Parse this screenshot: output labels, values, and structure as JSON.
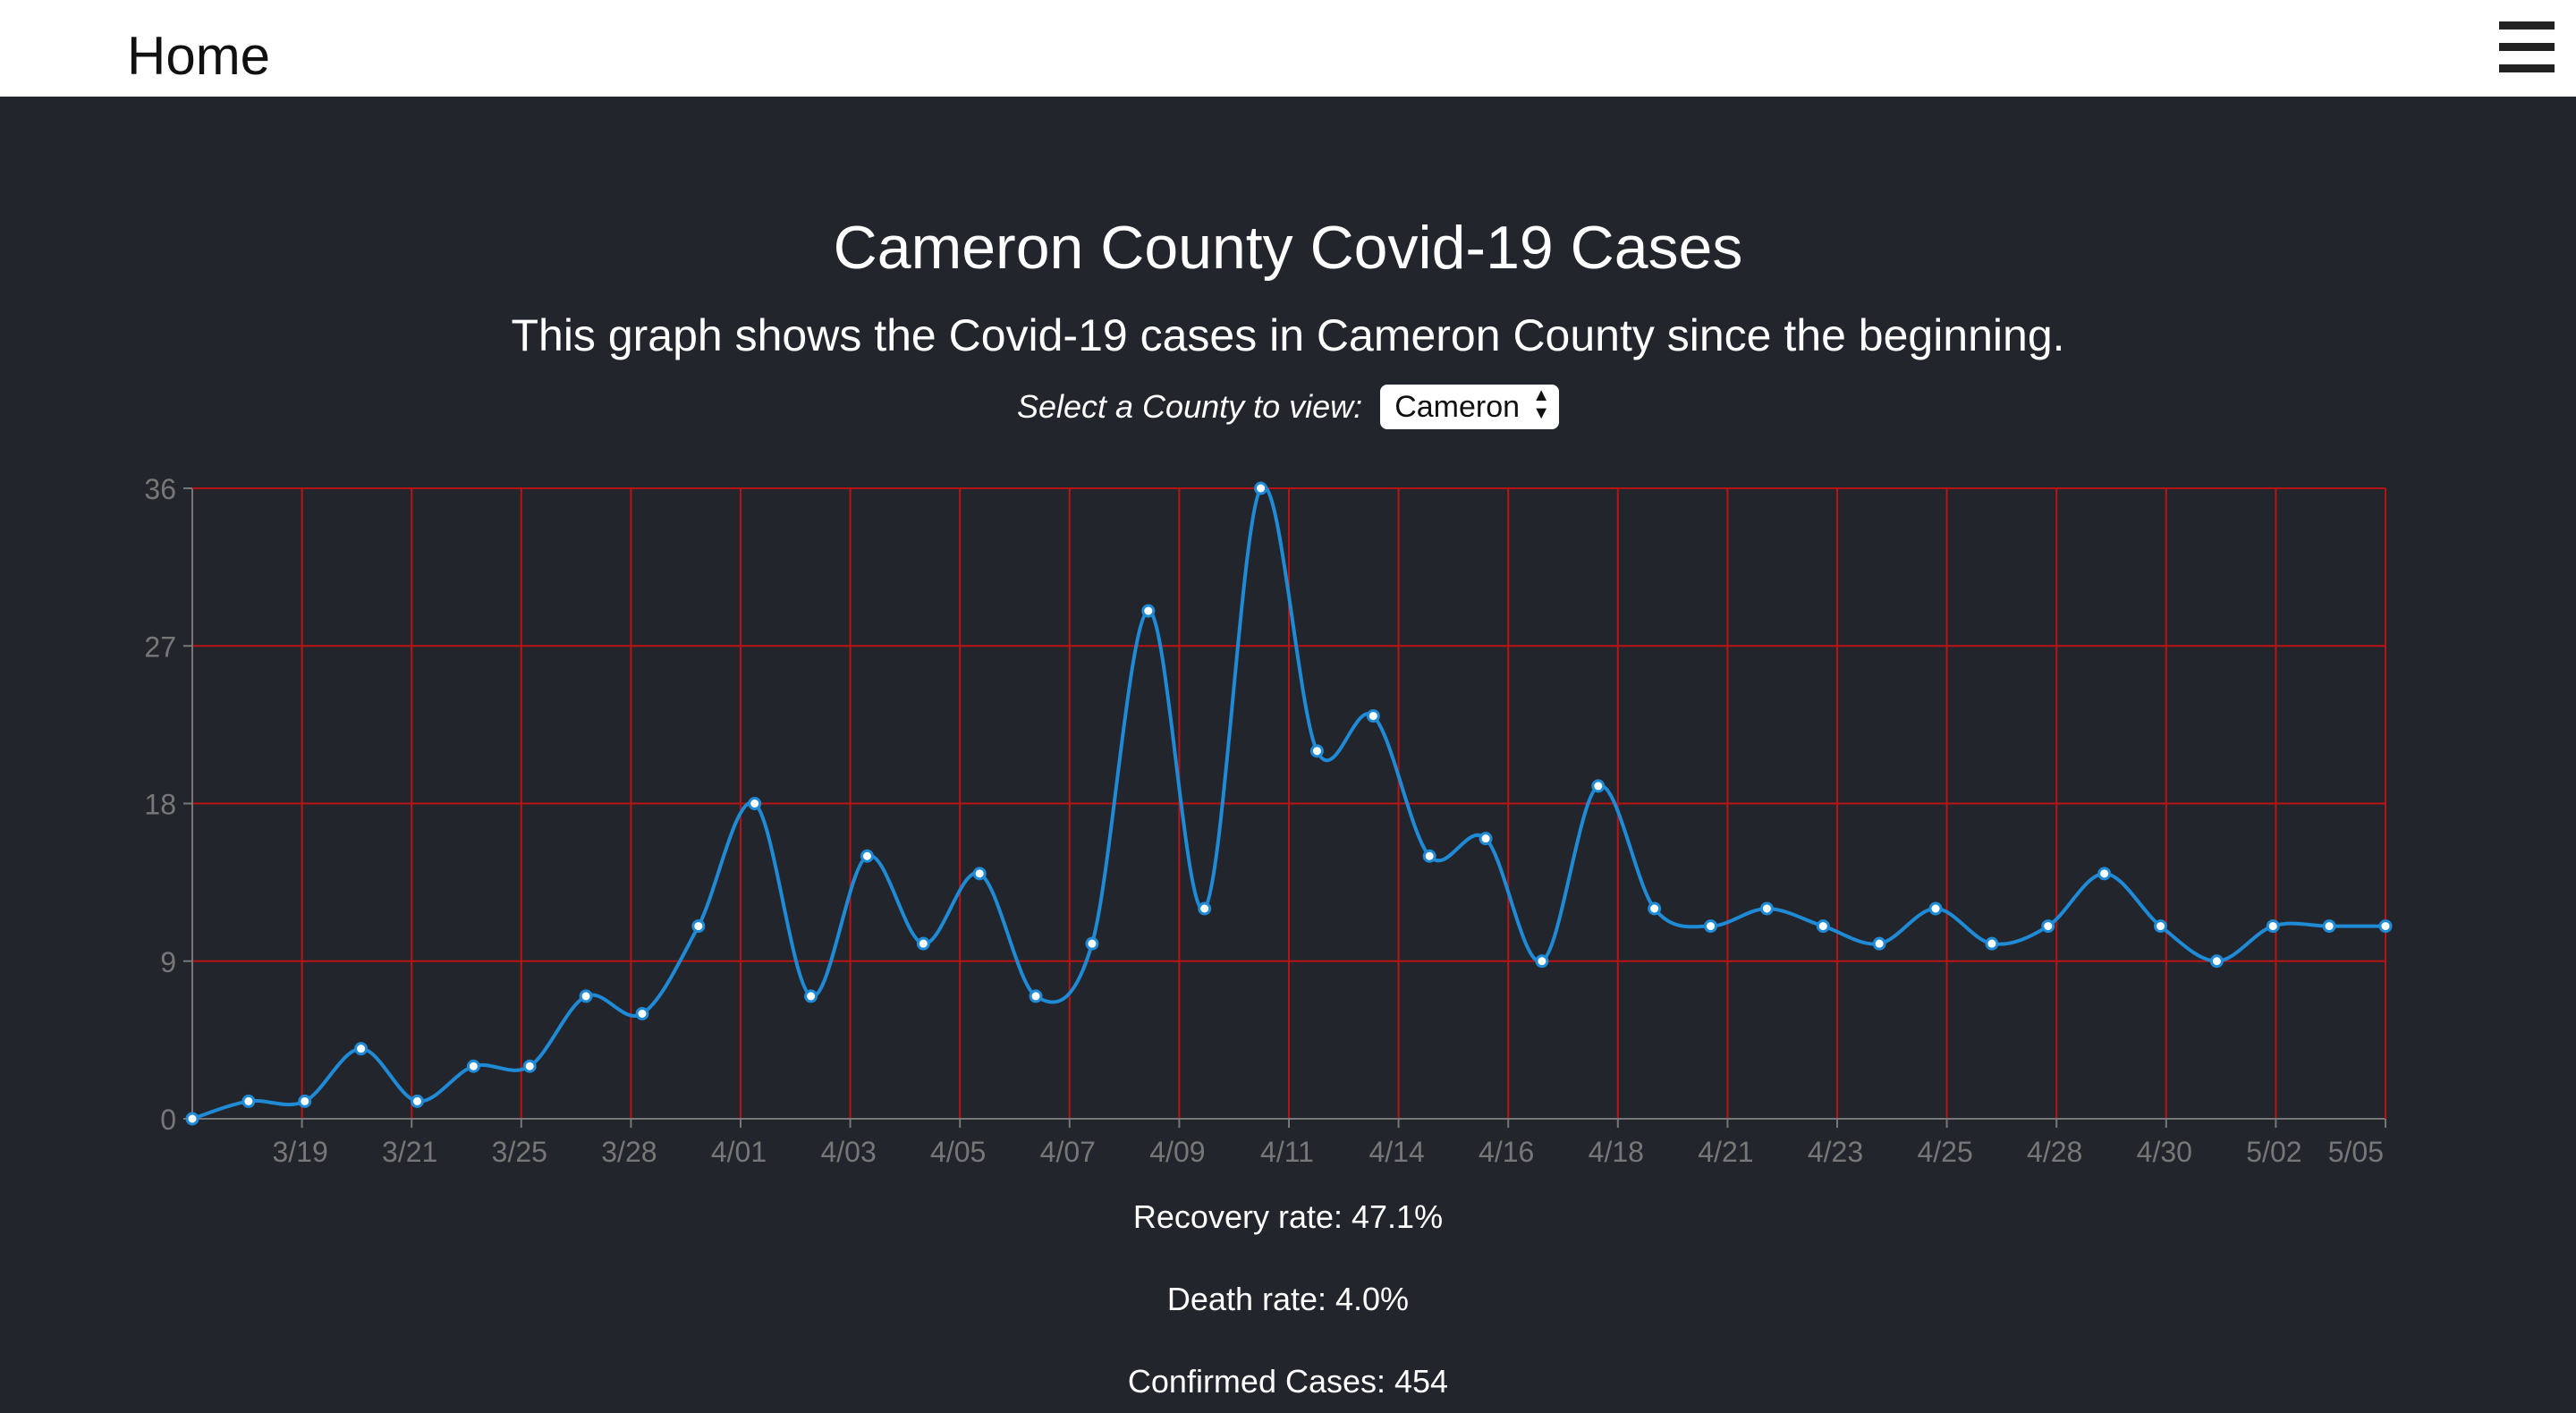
{
  "header": {
    "home_label": "Home",
    "menu_icon": "hamburger-icon"
  },
  "main": {
    "title": "Cameron County Covid-19 Cases",
    "subtitle": "This graph shows the Covid-19 cases in Cameron County since the beginning.",
    "select_label": "Select a County to view:",
    "select_value": "Cameron"
  },
  "stats": {
    "recovery": "Recovery rate: 47.1%",
    "death": "Death rate: 4.0%",
    "confirmed": "Confirmed Cases: 454"
  },
  "colors": {
    "background": "#22262c",
    "line": "#1f8ad6",
    "grid": "#b81414",
    "axis_text": "#777777"
  },
  "chart_data": {
    "type": "line",
    "title": "",
    "xlabel": "",
    "ylabel": "",
    "ylim": [
      0,
      36
    ],
    "yticks": [
      0,
      9,
      18,
      27,
      36
    ],
    "grid": true,
    "x_tick_labels": [
      "3/19",
      "3/21",
      "3/25",
      "3/28",
      "4/01",
      "4/03",
      "4/05",
      "4/07",
      "4/09",
      "4/11",
      "4/14",
      "4/16",
      "4/18",
      "4/21",
      "4/23",
      "4/25",
      "4/28",
      "4/30",
      "5/02",
      "5/05"
    ],
    "values": [
      0,
      1,
      1,
      4,
      1,
      3,
      3,
      7,
      6,
      11,
      18,
      7,
      15,
      10,
      14,
      7,
      10,
      29,
      12,
      36,
      21,
      23,
      15,
      16,
      9,
      19,
      12,
      11,
      12,
      11,
      10,
      12,
      10,
      11,
      14,
      11,
      9,
      11,
      11,
      11
    ]
  }
}
